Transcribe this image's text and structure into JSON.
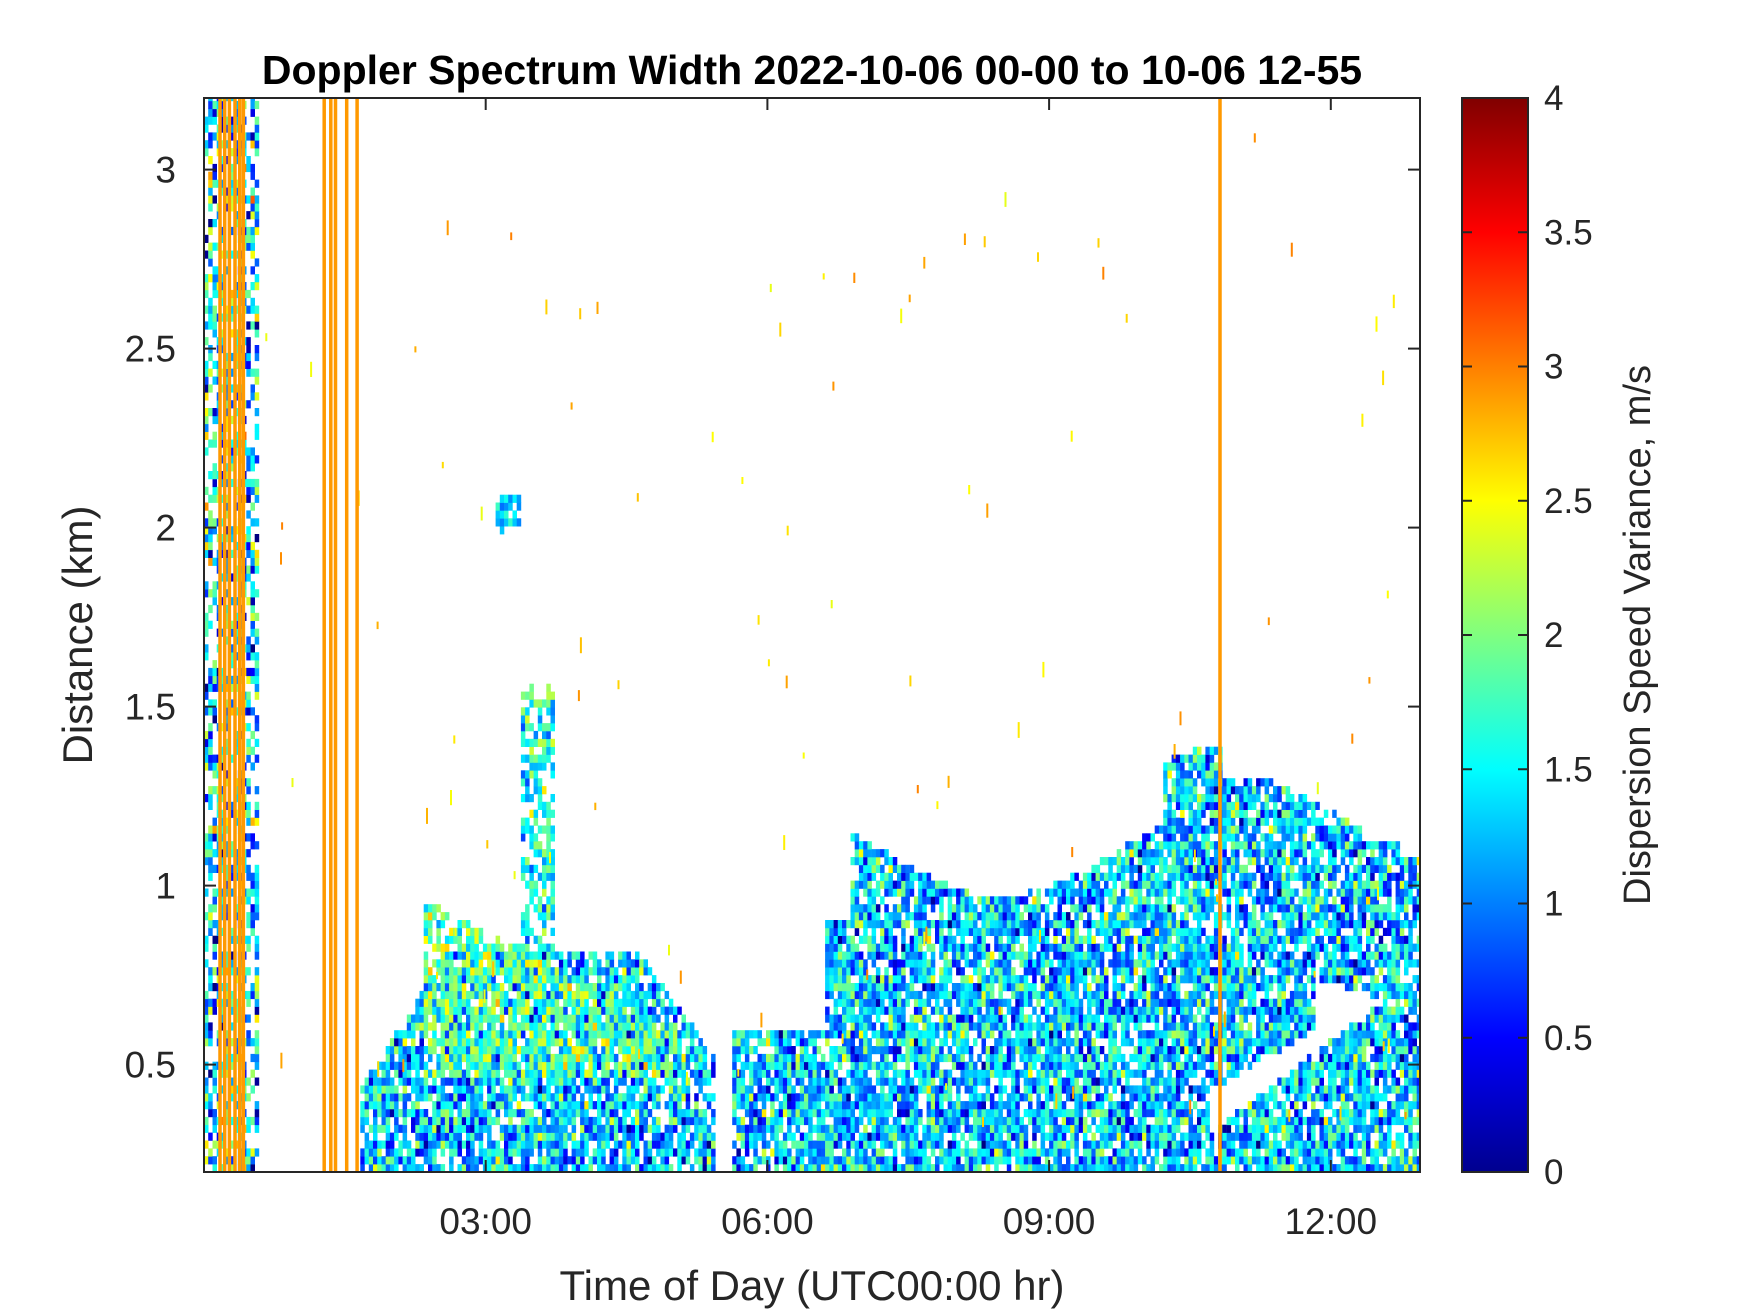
{
  "chart_data": {
    "type": "heatmap",
    "title": "Doppler Spectrum Width 2022-10-06 00-00 to 10-06 12-55",
    "xlabel": "Time of Day (UTC00:00 hr)",
    "ylabel": "Distance (km)",
    "x_unit": "hours UTC",
    "xlim": [
      0,
      12.95
    ],
    "ylim": [
      0.2,
      3.2
    ],
    "x_ticks": [
      {
        "value": 3,
        "label": "03:00"
      },
      {
        "value": 6,
        "label": "06:00"
      },
      {
        "value": 9,
        "label": "09:00"
      },
      {
        "value": 12,
        "label": "12:00"
      }
    ],
    "y_ticks": [
      {
        "value": 0.5,
        "label": "0.5"
      },
      {
        "value": 1.0,
        "label": "1"
      },
      {
        "value": 1.5,
        "label": "1.5"
      },
      {
        "value": 2.0,
        "label": "2"
      },
      {
        "value": 2.5,
        "label": "2.5"
      },
      {
        "value": 3.0,
        "label": "3"
      }
    ],
    "colorbar": {
      "label": "Dispersion Speed Variance, m/s",
      "colormap": "jet",
      "clim": [
        0,
        4
      ],
      "ticks": [
        {
          "value": 0,
          "label": "0"
        },
        {
          "value": 0.5,
          "label": "0.5"
        },
        {
          "value": 1,
          "label": "1"
        },
        {
          "value": 1.5,
          "label": "1.5"
        },
        {
          "value": 2,
          "label": "2"
        },
        {
          "value": 2.5,
          "label": "2.5"
        },
        {
          "value": 3,
          "label": "3"
        },
        {
          "value": 3.5,
          "label": "3.5"
        },
        {
          "value": 4,
          "label": "4"
        }
      ]
    },
    "vertical_streaks": [
      {
        "t": 0.17,
        "value": 2.9
      },
      {
        "t": 0.22,
        "value": 2.9
      },
      {
        "t": 0.27,
        "value": 2.9
      },
      {
        "t": 0.33,
        "value": 2.9
      },
      {
        "t": 0.38,
        "value": 2.9
      },
      {
        "t": 0.42,
        "value": 2.9
      },
      {
        "t": 1.28,
        "value": 2.9
      },
      {
        "t": 1.35,
        "value": 2.9
      },
      {
        "t": 1.4,
        "value": 2.9
      },
      {
        "t": 1.52,
        "value": 2.9
      },
      {
        "t": 1.63,
        "value": 2.9
      },
      {
        "t": 10.82,
        "value": 2.9
      }
    ],
    "regions": [
      {
        "name": "early column",
        "t_start": 0.0,
        "t_end": 0.55,
        "top_km": 3.2,
        "mean_value": 1.4
      },
      {
        "name": "boundary layer morning",
        "t_start": 1.65,
        "t_end": 5.4,
        "top_km": 0.65,
        "mean_value": 1.3
      },
      {
        "name": "lifted layer",
        "t_start": 2.3,
        "t_end": 5.0,
        "top_km": 0.95,
        "mean_value": 1.9
      },
      {
        "name": "plume",
        "t_start": 3.35,
        "t_end": 3.7,
        "top_km": 1.55,
        "mean_value": 1.6
      },
      {
        "name": "small patch",
        "t_start": 3.1,
        "t_end": 3.35,
        "top_km": 2.08,
        "mean_value": 1.3
      },
      {
        "name": "mixed layer",
        "t_start": 5.6,
        "t_end": 12.95,
        "top_km": 1.3,
        "mean_value": 1.3
      }
    ]
  },
  "colors": {
    "axis": "#262626",
    "streak": "#f0960a",
    "background": "#ffffff"
  }
}
